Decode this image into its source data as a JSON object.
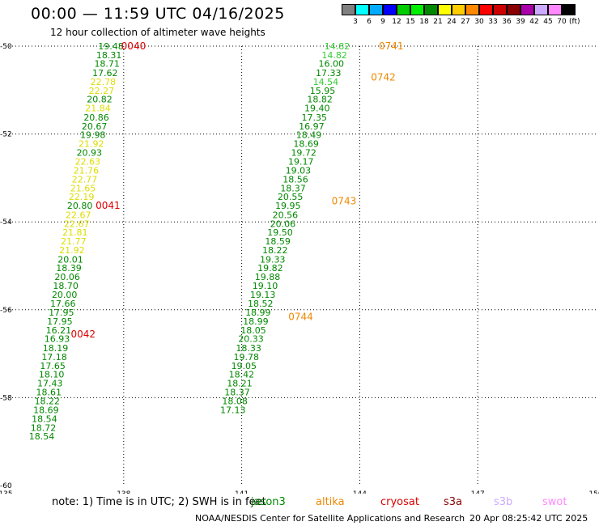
{
  "title": "00:00 — 11:59 UTC 04/16/2025",
  "subtitle": "12 hour collection of altimeter wave heights",
  "legend": {
    "unit": "(ft)",
    "bins": [
      {
        "label": "3",
        "color": "#808080"
      },
      {
        "label": "6",
        "color": "#00ffff"
      },
      {
        "label": "9",
        "color": "#00aaff"
      },
      {
        "label": "12",
        "color": "#0000ff"
      },
      {
        "label": "15",
        "color": "#00cc00"
      },
      {
        "label": "18",
        "color": "#00ee00"
      },
      {
        "label": "21",
        "color": "#008800"
      },
      {
        "label": "24",
        "color": "#ffff00"
      },
      {
        "label": "27",
        "color": "#ffcc00"
      },
      {
        "label": "30",
        "color": "#ff8800"
      },
      {
        "label": "33",
        "color": "#ff0000"
      },
      {
        "label": "36",
        "color": "#cc0000"
      },
      {
        "label": "39",
        "color": "#880000"
      },
      {
        "label": "42",
        "color": "#aa00aa"
      },
      {
        "label": "45",
        "color": "#ccaaff"
      },
      {
        "label": "70",
        "color": "#ff88ff"
      },
      {
        "label": "",
        "color": "#000000"
      }
    ]
  },
  "chart_data": {
    "type": "scatter",
    "xlim": [
      135,
      150
    ],
    "ylim": [
      -60,
      -50
    ],
    "x_ticks": [
      "135",
      "138",
      "141",
      "144",
      "147",
      "150"
    ],
    "y_ticks": [
      "-50",
      "-52",
      "-54",
      "-56",
      "-58",
      "-60"
    ],
    "grid": true,
    "colors": {
      "dg": "#008800",
      "lg": "#33cc33",
      "ye": "#dddd00",
      "or": "#ee8800",
      "rd": "#dd0000"
    },
    "tracks": [
      {
        "points": [
          {
            "x": 138.0,
            "y": -50.0,
            "v": "19.48",
            "c": "dg"
          },
          {
            "x": 137.95,
            "y": -50.2,
            "v": "18.31",
            "c": "dg"
          },
          {
            "x": 137.9,
            "y": -50.4,
            "v": "18.71",
            "c": "dg"
          },
          {
            "x": 137.85,
            "y": -50.61,
            "v": "17.62",
            "c": "dg"
          },
          {
            "x": 137.8,
            "y": -50.81,
            "v": "22.78",
            "c": "ye"
          },
          {
            "x": 137.76,
            "y": -51.01,
            "v": "22.27",
            "c": "ye"
          },
          {
            "x": 137.71,
            "y": -51.21,
            "v": "20.82",
            "c": "dg"
          },
          {
            "x": 137.67,
            "y": -51.41,
            "v": "21.84",
            "c": "ye"
          },
          {
            "x": 137.63,
            "y": -51.62,
            "v": "20.86",
            "c": "dg"
          },
          {
            "x": 137.58,
            "y": -51.82,
            "v": "20.67",
            "c": "dg"
          },
          {
            "x": 137.54,
            "y": -52.02,
            "v": "19.98",
            "c": "dg"
          },
          {
            "x": 137.5,
            "y": -52.22,
            "v": "21.92",
            "c": "ye"
          },
          {
            "x": 137.45,
            "y": -52.42,
            "v": "20.93",
            "c": "dg"
          },
          {
            "x": 137.41,
            "y": -52.62,
            "v": "22.63",
            "c": "ye"
          },
          {
            "x": 137.37,
            "y": -52.83,
            "v": "21.76",
            "c": "ye"
          },
          {
            "x": 137.33,
            "y": -53.03,
            "v": "22.77",
            "c": "ye"
          },
          {
            "x": 137.29,
            "y": -53.23,
            "v": "21.65",
            "c": "ye"
          },
          {
            "x": 137.25,
            "y": -53.43,
            "v": "22.19",
            "c": "ye"
          },
          {
            "x": 137.21,
            "y": -53.63,
            "v": "20.80",
            "c": "dg"
          },
          {
            "x": 137.17,
            "y": -53.84,
            "v": "22.67",
            "c": "ye"
          },
          {
            "x": 137.13,
            "y": -54.04,
            "v": "22.67",
            "c": "ye"
          },
          {
            "x": 137.09,
            "y": -54.24,
            "v": "21.81",
            "c": "ye"
          },
          {
            "x": 137.05,
            "y": -54.44,
            "v": "21.77",
            "c": "ye"
          },
          {
            "x": 137.01,
            "y": -54.64,
            "v": "21.92",
            "c": "ye"
          },
          {
            "x": 136.97,
            "y": -54.85,
            "v": "20.01",
            "c": "dg"
          },
          {
            "x": 136.93,
            "y": -55.05,
            "v": "18.39",
            "c": "dg"
          },
          {
            "x": 136.89,
            "y": -55.25,
            "v": "20.06",
            "c": "dg"
          },
          {
            "x": 136.85,
            "y": -55.45,
            "v": "18.70",
            "c": "dg"
          },
          {
            "x": 136.82,
            "y": -55.65,
            "v": "20.00",
            "c": "dg"
          },
          {
            "x": 136.78,
            "y": -55.86,
            "v": "17.66",
            "c": "dg"
          },
          {
            "x": 136.74,
            "y": -56.06,
            "v": "17.95",
            "c": "dg"
          },
          {
            "x": 136.7,
            "y": -56.26,
            "v": "17.95",
            "c": "dg"
          },
          {
            "x": 136.67,
            "y": -56.46,
            "v": "16.21",
            "c": "dg"
          },
          {
            "x": 136.63,
            "y": -56.66,
            "v": "16.93",
            "c": "dg"
          },
          {
            "x": 136.59,
            "y": -56.87,
            "v": "18.19",
            "c": "dg"
          },
          {
            "x": 136.56,
            "y": -57.07,
            "v": "17.18",
            "c": "dg"
          },
          {
            "x": 136.52,
            "y": -57.27,
            "v": "17.65",
            "c": "dg"
          },
          {
            "x": 136.49,
            "y": -57.47,
            "v": "18.10",
            "c": "dg"
          },
          {
            "x": 136.45,
            "y": -57.67,
            "v": "17.43",
            "c": "dg"
          },
          {
            "x": 136.42,
            "y": -57.87,
            "v": "18.61",
            "c": "dg"
          },
          {
            "x": 136.38,
            "y": -58.08,
            "v": "18.22",
            "c": "dg"
          },
          {
            "x": 136.35,
            "y": -58.28,
            "v": "18.69",
            "c": "dg"
          },
          {
            "x": 136.31,
            "y": -58.48,
            "v": "18.54",
            "c": "dg"
          },
          {
            "x": 136.28,
            "y": -58.68,
            "v": "18.72",
            "c": "dg"
          },
          {
            "x": 136.24,
            "y": -58.88,
            "v": "18.54",
            "c": "dg"
          }
        ]
      },
      {
        "points": [
          {
            "x": 143.75,
            "y": -50.0,
            "v": "14.82",
            "c": "lg"
          },
          {
            "x": 143.68,
            "y": -50.2,
            "v": "14.82",
            "c": "lg"
          },
          {
            "x": 143.6,
            "y": -50.4,
            "v": "16.00",
            "c": "dg"
          },
          {
            "x": 143.53,
            "y": -50.61,
            "v": "17.33",
            "c": "dg"
          },
          {
            "x": 143.46,
            "y": -50.81,
            "v": "14.54",
            "c": "lg"
          },
          {
            "x": 143.38,
            "y": -51.01,
            "v": "15.95",
            "c": "dg"
          },
          {
            "x": 143.31,
            "y": -51.21,
            "v": "18.82",
            "c": "dg"
          },
          {
            "x": 143.24,
            "y": -51.41,
            "v": "19.40",
            "c": "dg"
          },
          {
            "x": 143.17,
            "y": -51.62,
            "v": "17.35",
            "c": "dg"
          },
          {
            "x": 143.1,
            "y": -51.82,
            "v": "16.97",
            "c": "dg"
          },
          {
            "x": 143.03,
            "y": -52.02,
            "v": "18.49",
            "c": "dg"
          },
          {
            "x": 142.96,
            "y": -52.22,
            "v": "18.69",
            "c": "dg"
          },
          {
            "x": 142.9,
            "y": -52.42,
            "v": "19.72",
            "c": "dg"
          },
          {
            "x": 142.83,
            "y": -52.62,
            "v": "19.17",
            "c": "dg"
          },
          {
            "x": 142.76,
            "y": -52.83,
            "v": "19.03",
            "c": "dg"
          },
          {
            "x": 142.69,
            "y": -53.03,
            "v": "18.56",
            "c": "dg"
          },
          {
            "x": 142.63,
            "y": -53.23,
            "v": "18.37",
            "c": "dg"
          },
          {
            "x": 142.56,
            "y": -53.43,
            "v": "20.55",
            "c": "dg"
          },
          {
            "x": 142.5,
            "y": -53.63,
            "v": "19.95",
            "c": "dg"
          },
          {
            "x": 142.43,
            "y": -53.84,
            "v": "20.56",
            "c": "dg"
          },
          {
            "x": 142.37,
            "y": -54.04,
            "v": "20.06",
            "c": "dg"
          },
          {
            "x": 142.3,
            "y": -54.24,
            "v": "19.50",
            "c": "dg"
          },
          {
            "x": 142.24,
            "y": -54.44,
            "v": "18.59",
            "c": "dg"
          },
          {
            "x": 142.17,
            "y": -54.64,
            "v": "18.22",
            "c": "dg"
          },
          {
            "x": 142.11,
            "y": -54.85,
            "v": "19.33",
            "c": "dg"
          },
          {
            "x": 142.05,
            "y": -55.05,
            "v": "19.82",
            "c": "dg"
          },
          {
            "x": 141.98,
            "y": -55.25,
            "v": "19.88",
            "c": "dg"
          },
          {
            "x": 141.92,
            "y": -55.45,
            "v": "19.10",
            "c": "dg"
          },
          {
            "x": 141.86,
            "y": -55.65,
            "v": "19.13",
            "c": "dg"
          },
          {
            "x": 141.8,
            "y": -55.86,
            "v": "18.52",
            "c": "dg"
          },
          {
            "x": 141.74,
            "y": -56.06,
            "v": "18.99",
            "c": "dg"
          },
          {
            "x": 141.68,
            "y": -56.26,
            "v": "18.99",
            "c": "dg"
          },
          {
            "x": 141.62,
            "y": -56.46,
            "v": "18.05",
            "c": "dg"
          },
          {
            "x": 141.56,
            "y": -56.66,
            "v": "20.33",
            "c": "dg"
          },
          {
            "x": 141.5,
            "y": -56.87,
            "v": "18.33",
            "c": "dg"
          },
          {
            "x": 141.44,
            "y": -57.07,
            "v": "19.78",
            "c": "dg"
          },
          {
            "x": 141.38,
            "y": -57.27,
            "v": "19.05",
            "c": "dg"
          },
          {
            "x": 141.32,
            "y": -57.47,
            "v": "18.42",
            "c": "dg"
          },
          {
            "x": 141.27,
            "y": -57.67,
            "v": "18.21",
            "c": "dg"
          },
          {
            "x": 141.21,
            "y": -57.87,
            "v": "18.37",
            "c": "dg"
          },
          {
            "x": 141.15,
            "y": -58.08,
            "v": "18.08",
            "c": "dg"
          },
          {
            "x": 141.1,
            "y": -58.28,
            "v": "17.13",
            "c": "dg"
          }
        ]
      }
    ],
    "time_labels": [
      {
        "text": "0040",
        "x": 138.25,
        "y": -50.0,
        "c": "rd"
      },
      {
        "text": "0041",
        "x": 137.6,
        "y": -53.63,
        "c": "rd"
      },
      {
        "text": "0042",
        "x": 136.97,
        "y": -56.56,
        "c": "rd"
      },
      {
        "text": "0741",
        "x": 144.8,
        "y": -50.0,
        "c": "or"
      },
      {
        "text": "0742",
        "x": 144.6,
        "y": -50.71,
        "c": "or"
      },
      {
        "text": "0743",
        "x": 143.6,
        "y": -53.53,
        "c": "or"
      },
      {
        "text": "0744",
        "x": 142.5,
        "y": -56.16,
        "c": "or"
      }
    ]
  },
  "note": "note: 1) Time is in UTC; 2) SWH is in feet",
  "satellites": [
    {
      "name": "jason3",
      "color": "#008800"
    },
    {
      "name": "altika",
      "color": "#ee8800"
    },
    {
      "name": "cryosat",
      "color": "#dd0000"
    },
    {
      "name": "s3a",
      "color": "#880000"
    },
    {
      "name": "s3b",
      "color": "#ccaaff"
    },
    {
      "name": "swot",
      "color": "#ff88ff"
    }
  ],
  "credit": "NOAA/NESDIS Center for Satellite Applications and Research",
  "timestamp": "20 Apr 08:25:42 UTC 2025"
}
